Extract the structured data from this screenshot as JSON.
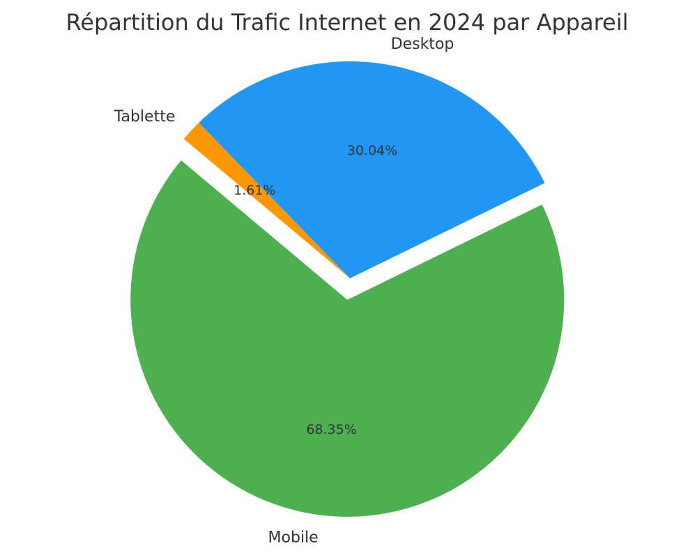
{
  "chart_data": {
    "type": "pie",
    "title": "Répartition du Trafic Internet en 2024 par Appareil",
    "start_angle_deg": 140,
    "direction": "counterclockwise",
    "slices": [
      {
        "label": "Mobile",
        "value": 68.35,
        "pct_label": "68.35%",
        "color": "#4CAF50",
        "explode": 0.1
      },
      {
        "label": "Desktop",
        "value": 30.04,
        "pct_label": "30.04%",
        "color": "#2196F3",
        "explode": 0
      },
      {
        "label": "Tablette",
        "value": 1.61,
        "pct_label": "1.61%",
        "color": "#FF9800",
        "explode": 0
      }
    ],
    "text_color": "#333333"
  }
}
